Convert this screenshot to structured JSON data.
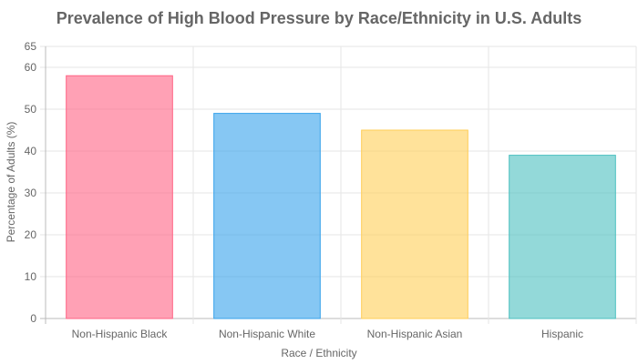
{
  "chart_data": {
    "type": "bar",
    "title": "Prevalence of High Blood Pressure by Race/Ethnicity in U.S. Adults",
    "xlabel": "Race / Ethnicity",
    "ylabel": "Percentage of Adults (%)",
    "categories": [
      "Non-Hispanic Black",
      "Non-Hispanic White",
      "Non-Hispanic Asian",
      "Hispanic"
    ],
    "values": [
      58,
      49,
      45,
      39
    ],
    "ylim": [
      0,
      65
    ],
    "yticks": [
      0,
      10,
      20,
      30,
      40,
      50,
      60,
      65
    ],
    "grid": true,
    "legend": "none",
    "colors": [
      "rgba(255,99,132,0.6)",
      "rgba(54,162,235,0.6)",
      "rgba(255,206,86,0.6)",
      "rgba(75,192,192,0.6)"
    ],
    "border_colors": [
      "#ff6384",
      "#36a2eb",
      "#ffce56",
      "#4bc0c0"
    ]
  }
}
